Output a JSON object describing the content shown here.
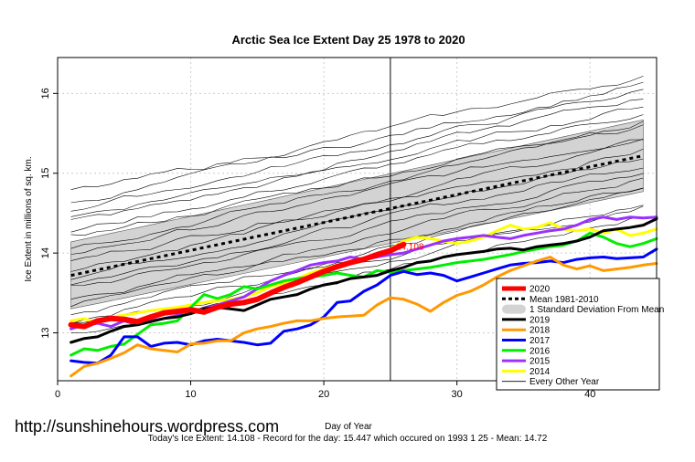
{
  "chart_data": {
    "type": "line",
    "title": "Arctic Sea Ice Extent Day 25 1978 to 2020",
    "xlabel": "Day of Year",
    "ylabel": "Ice Extent in millions of sq. km.",
    "xlim": [
      0,
      45
    ],
    "ylim": [
      12.4,
      16.45
    ],
    "x_ticks": [
      0,
      10,
      20,
      30,
      40
    ],
    "y_ticks": [
      13,
      14,
      15,
      16
    ],
    "grid": true,
    "vertical_line_day": 25,
    "annotation": {
      "text": "14.108",
      "x": 25,
      "y": 14.108
    },
    "legend_position": "bottom-right",
    "mean": {
      "name": "Mean 1981-2010",
      "color": "#000000",
      "start": 13.72,
      "end": 15.22
    },
    "std_band": {
      "name": "1 Standard Deviation From Mean",
      "color": "#d3d3d3",
      "halfwidth": 0.42
    },
    "series": [
      {
        "name": "2020",
        "color": "#ff0000",
        "values": [
          13.1,
          13.08,
          13.15,
          13.18,
          13.17,
          13.14,
          13.2,
          13.25,
          13.27,
          13.29,
          13.26,
          13.32,
          13.36,
          13.38,
          13.42,
          13.5,
          13.57,
          13.63,
          13.7,
          13.77,
          13.83,
          13.88,
          13.92,
          13.98,
          14.03,
          14.108
        ]
      },
      {
        "name": "2019",
        "color": "#000000",
        "values": [
          12.88,
          12.93,
          12.95,
          13.02,
          13.08,
          13.1,
          13.14,
          13.18,
          13.2,
          13.24,
          13.3,
          13.32,
          13.3,
          13.28,
          13.35,
          13.42,
          13.45,
          13.48,
          13.55,
          13.6,
          13.63,
          13.68,
          13.7,
          13.72,
          13.78,
          13.82,
          13.88,
          13.9,
          13.95,
          13.98,
          14.0,
          14.02,
          14.05,
          14.06,
          14.04,
          14.08,
          14.1,
          14.12,
          14.15,
          14.2,
          14.28,
          14.3,
          14.32,
          14.35,
          14.43
        ]
      },
      {
        "name": "2018",
        "color": "#ff9900",
        "values": [
          12.46,
          12.58,
          12.62,
          12.68,
          12.75,
          12.85,
          12.8,
          12.78,
          12.76,
          12.86,
          12.87,
          12.9,
          12.9,
          13.0,
          13.05,
          13.08,
          13.12,
          13.15,
          13.15,
          13.18,
          13.2,
          13.21,
          13.22,
          13.35,
          13.44,
          13.42,
          13.36,
          13.27,
          13.38,
          13.47,
          13.52,
          13.6,
          13.7,
          13.78,
          13.84,
          13.9,
          13.95,
          13.85,
          13.8,
          13.84,
          13.78,
          13.8,
          13.82,
          13.85,
          13.87
        ]
      },
      {
        "name": "2017",
        "color": "#0000ff",
        "values": [
          12.65,
          12.63,
          12.62,
          12.72,
          12.95,
          12.95,
          12.83,
          12.87,
          12.88,
          12.85,
          12.9,
          12.92,
          12.9,
          12.88,
          12.85,
          12.87,
          13.02,
          13.05,
          13.1,
          13.2,
          13.38,
          13.4,
          13.52,
          13.6,
          13.72,
          13.77,
          13.73,
          13.75,
          13.72,
          13.65,
          13.7,
          13.75,
          13.8,
          13.85,
          13.87,
          13.88,
          13.9,
          13.88,
          13.92,
          13.94,
          13.95,
          13.93,
          13.94,
          13.95,
          14.05
        ]
      },
      {
        "name": "2016",
        "color": "#00ee00",
        "values": [
          12.72,
          12.8,
          12.78,
          12.83,
          12.86,
          12.98,
          13.1,
          13.12,
          13.15,
          13.32,
          13.48,
          13.43,
          13.48,
          13.58,
          13.55,
          13.6,
          13.65,
          13.68,
          13.7,
          13.72,
          13.75,
          13.72,
          13.7,
          13.78,
          13.76,
          13.78,
          13.8,
          13.82,
          13.85,
          13.88,
          13.9,
          13.92,
          13.95,
          13.98,
          14.02,
          14.05,
          14.08,
          14.1,
          14.15,
          14.25,
          14.2,
          14.12,
          14.08,
          14.12,
          14.18
        ]
      },
      {
        "name": "2015",
        "color": "#9b30ff",
        "values": [
          13.05,
          13.1,
          13.12,
          13.08,
          13.15,
          13.1,
          13.15,
          13.18,
          13.22,
          13.25,
          13.3,
          13.35,
          13.4,
          13.45,
          13.55,
          13.65,
          13.72,
          13.78,
          13.85,
          13.88,
          13.9,
          13.95,
          13.92,
          13.95,
          13.98,
          14.0,
          14.05,
          14.1,
          14.15,
          14.18,
          14.2,
          14.22,
          14.2,
          14.18,
          14.22,
          14.25,
          14.28,
          14.3,
          14.35,
          14.42,
          14.45,
          14.42,
          14.45,
          14.44,
          14.45
        ]
      },
      {
        "name": "2014",
        "color": "#ffff00",
        "values": [
          13.15,
          13.18,
          13.12,
          13.2,
          13.22,
          13.25,
          13.28,
          13.3,
          13.32,
          13.35,
          13.38,
          13.4,
          13.42,
          13.45,
          13.5,
          13.58,
          13.62,
          13.68,
          13.75,
          13.8,
          13.85,
          13.88,
          13.92,
          13.95,
          14.05,
          14.15,
          14.2,
          14.18,
          14.15,
          14.12,
          14.15,
          14.2,
          14.28,
          14.35,
          14.3,
          14.32,
          14.38,
          14.3,
          14.28,
          14.3,
          14.25,
          14.3,
          14.22,
          14.25,
          14.3
        ]
      }
    ],
    "other_years_label": "Every Other Year"
  }
}
